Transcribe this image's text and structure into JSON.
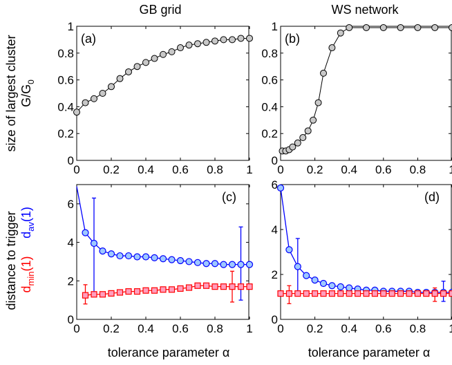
{
  "column_titles": [
    "GB grid",
    "WS network"
  ],
  "ylabel_top": [
    "size of largest cluster",
    "G/G",
    "0"
  ],
  "ylabel_bottom": {
    "prefix": "distance to trigger",
    "red": "d",
    "red_sub": "min",
    "red_suffix": "(1)",
    "blue": "d",
    "blue_sub": "av",
    "blue_suffix": "(1)"
  },
  "xlabel": "tolerance parameter α",
  "colors": {
    "gray_marker": "#c8c8c8",
    "blue": "#0000ff",
    "blue_fill": "#9ec8ff",
    "red": "#ff0000",
    "red_fill": "#ff9ebd",
    "line": "#000000"
  },
  "chart_data": [
    {
      "type": "line",
      "panel": "(a)",
      "xlim": [
        0,
        1
      ],
      "ylim": [
        0,
        1
      ],
      "xticks": [
        0,
        0.2,
        0.4,
        0.6,
        0.8,
        1
      ],
      "yticks": [
        0,
        0.2,
        0.4,
        0.6,
        0.8,
        1
      ],
      "xtick_labels": [
        "0",
        "0.2",
        "0.4",
        "0.6",
        "0.8",
        "1"
      ],
      "ytick_labels": [
        "0",
        "0.2",
        "0.4",
        "0.6",
        "0.8",
        "1"
      ],
      "series": [
        {
          "x": [
            0,
            0.05,
            0.1,
            0.15,
            0.2,
            0.25,
            0.3,
            0.35,
            0.4,
            0.45,
            0.5,
            0.55,
            0.6,
            0.65,
            0.7,
            0.75,
            0.8,
            0.85,
            0.9,
            0.95,
            1
          ],
          "y": [
            0.36,
            0.43,
            0.46,
            0.5,
            0.55,
            0.61,
            0.66,
            0.7,
            0.73,
            0.76,
            0.79,
            0.81,
            0.84,
            0.86,
            0.87,
            0.88,
            0.89,
            0.9,
            0.9,
            0.91,
            0.91
          ]
        }
      ]
    },
    {
      "type": "line",
      "panel": "(b)",
      "xlim": [
        0,
        1
      ],
      "ylim": [
        0,
        1
      ],
      "xticks": [
        0,
        0.2,
        0.4,
        0.6,
        0.8,
        1
      ],
      "yticks": [
        0,
        0.2,
        0.4,
        0.6,
        0.8,
        1
      ],
      "xtick_labels": [
        "0",
        "0.2",
        "0.4",
        "0.6",
        "0.8",
        "1"
      ],
      "ytick_labels": [
        "0",
        "0.2",
        "0.4",
        "0.6",
        "0.8",
        "1"
      ],
      "series": [
        {
          "x": [
            0.01,
            0.03,
            0.05,
            0.07,
            0.1,
            0.13,
            0.16,
            0.19,
            0.22,
            0.25,
            0.3,
            0.35,
            0.4,
            0.5,
            0.6,
            0.7,
            0.8,
            0.9,
            1
          ],
          "y": [
            0.07,
            0.07,
            0.08,
            0.1,
            0.13,
            0.17,
            0.22,
            0.3,
            0.43,
            0.65,
            0.84,
            0.95,
            0.99,
            0.99,
            0.99,
            0.99,
            0.99,
            0.99,
            0.99
          ]
        }
      ]
    },
    {
      "type": "line",
      "panel": "(c)",
      "xlim": [
        0,
        1
      ],
      "ylim": [
        0,
        7
      ],
      "xticks": [
        0,
        0.2,
        0.4,
        0.6,
        0.8,
        1
      ],
      "yticks": [
        0,
        2,
        4,
        6
      ],
      "xtick_labels": [
        "0",
        "0.2",
        "0.4",
        "0.6",
        "0.8",
        "1"
      ],
      "ytick_labels": [
        "0",
        "2",
        "4",
        "6"
      ],
      "series": [
        {
          "color": "blue",
          "line_x": [
            0,
            0.05,
            0.1,
            0.15,
            0.2,
            0.25,
            0.3,
            0.35,
            0.4,
            0.45,
            0.5,
            0.55,
            0.6,
            0.65,
            0.7,
            0.75,
            0.8,
            0.85,
            0.9,
            0.95,
            1
          ],
          "line_y": [
            6.9,
            4.5,
            3.95,
            3.55,
            3.4,
            3.3,
            3.3,
            3.25,
            3.25,
            3.2,
            3.15,
            3.1,
            3.05,
            3.0,
            2.95,
            2.9,
            2.9,
            2.85,
            2.85,
            2.85,
            2.85
          ],
          "marker_x": [
            0.05,
            0.1,
            0.15,
            0.2,
            0.25,
            0.3,
            0.35,
            0.4,
            0.45,
            0.5,
            0.55,
            0.6,
            0.65,
            0.7,
            0.75,
            0.8,
            0.85,
            0.9,
            0.95,
            1
          ],
          "marker_y": [
            4.5,
            3.95,
            3.55,
            3.4,
            3.3,
            3.3,
            3.25,
            3.25,
            3.2,
            3.15,
            3.1,
            3.05,
            3.0,
            2.95,
            2.9,
            2.9,
            2.85,
            2.85,
            2.85,
            2.85
          ],
          "error_bars": [
            {
              "x": 0.1,
              "low": 1.3,
              "high": 6.3
            },
            {
              "x": 0.95,
              "low": 1.0,
              "high": 4.8
            }
          ]
        },
        {
          "color": "red",
          "x": [
            0.05,
            0.1,
            0.15,
            0.2,
            0.25,
            0.3,
            0.35,
            0.4,
            0.45,
            0.5,
            0.55,
            0.6,
            0.65,
            0.7,
            0.75,
            0.8,
            0.85,
            0.9,
            0.95,
            1
          ],
          "y": [
            1.25,
            1.3,
            1.3,
            1.35,
            1.4,
            1.45,
            1.45,
            1.5,
            1.5,
            1.55,
            1.55,
            1.6,
            1.65,
            1.75,
            1.75,
            1.7,
            1.7,
            1.7,
            1.7,
            1.7
          ],
          "error_bars": [
            {
              "x": 0.05,
              "low": 0.8,
              "high": 1.8
            },
            {
              "x": 0.9,
              "low": 0.9,
              "high": 2.5
            }
          ]
        }
      ]
    },
    {
      "type": "line",
      "panel": "(d)",
      "xlim": [
        0,
        1
      ],
      "ylim": [
        0,
        6
      ],
      "xticks": [
        0,
        0.2,
        0.4,
        0.6,
        0.8,
        1
      ],
      "yticks": [
        0,
        2,
        4,
        6
      ],
      "xtick_labels": [
        "0",
        "0.2",
        "0.4",
        "0.6",
        "0.8",
        "1"
      ],
      "ytick_labels": [
        "0",
        "2",
        "4",
        "6"
      ],
      "series": [
        {
          "color": "blue",
          "line_x": [
            0,
            0.05,
            0.1,
            0.15,
            0.2,
            0.25,
            0.3,
            0.35,
            0.4,
            0.45,
            0.5,
            0.55,
            0.6,
            0.65,
            0.7,
            0.75,
            0.8,
            0.85,
            0.9,
            0.95,
            1
          ],
          "line_y": [
            5.85,
            3.1,
            2.35,
            1.95,
            1.75,
            1.6,
            1.5,
            1.45,
            1.4,
            1.35,
            1.3,
            1.3,
            1.25,
            1.25,
            1.25,
            1.25,
            1.2,
            1.2,
            1.2,
            1.2,
            1.2
          ],
          "marker_x": [
            0,
            0.05,
            0.1,
            0.15,
            0.2,
            0.25,
            0.3,
            0.35,
            0.4,
            0.45,
            0.5,
            0.55,
            0.6,
            0.65,
            0.7,
            0.75,
            0.8,
            0.85,
            0.9,
            0.95,
            1
          ],
          "marker_y": [
            5.85,
            3.1,
            2.35,
            1.95,
            1.75,
            1.6,
            1.5,
            1.45,
            1.4,
            1.35,
            1.3,
            1.3,
            1.25,
            1.25,
            1.25,
            1.25,
            1.2,
            1.2,
            1.2,
            1.2,
            1.2
          ],
          "error_bars": [
            {
              "x": 0.1,
              "low": 1.2,
              "high": 3.6
            },
            {
              "x": 0.95,
              "low": 0.8,
              "high": 1.7
            }
          ]
        },
        {
          "color": "red",
          "x": [
            0,
            0.05,
            0.1,
            0.15,
            0.2,
            0.25,
            0.3,
            0.35,
            0.4,
            0.45,
            0.5,
            0.55,
            0.6,
            0.65,
            0.7,
            0.75,
            0.8,
            0.85,
            0.9,
            0.95,
            1
          ],
          "y": [
            1.15,
            1.15,
            1.15,
            1.15,
            1.15,
            1.15,
            1.15,
            1.15,
            1.15,
            1.15,
            1.15,
            1.15,
            1.15,
            1.15,
            1.15,
            1.15,
            1.15,
            1.15,
            1.15,
            1.15,
            1.15
          ],
          "error_bars": [
            {
              "x": 0.05,
              "low": 0.7,
              "high": 1.5
            },
            {
              "x": 0.9,
              "low": 0.8,
              "high": 1.4
            }
          ]
        }
      ]
    }
  ]
}
